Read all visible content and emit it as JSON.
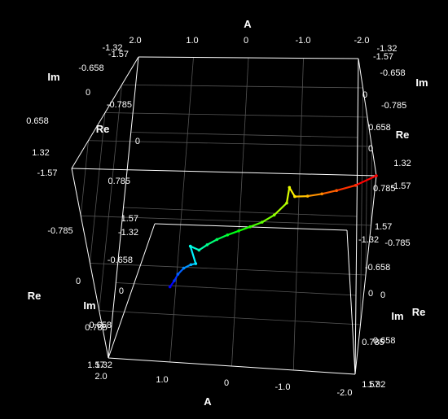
{
  "chart_data": {
    "type": "line",
    "projection": "3d",
    "axes": {
      "A": {
        "label": "A",
        "ticks": [
          "2.0",
          "1.0",
          "0",
          "-1.0",
          "-2.0"
        ],
        "range": [
          2.0,
          -2.0
        ]
      },
      "Re": {
        "label": "Re",
        "ticks": [
          "-1.57",
          "-0.785",
          "0",
          "0.785",
          "1.57"
        ],
        "range": [
          -1.57,
          1.57
        ]
      },
      "Im": {
        "label": "Im",
        "ticks": [
          "-1.32",
          "-0.658",
          "0",
          "0.658",
          "1.32"
        ],
        "range": [
          -1.32,
          1.32
        ]
      }
    },
    "grid": true,
    "colormap": [
      "#0000ff",
      "#00ffff",
      "#00ff00",
      "#ffff00",
      "#ff0000"
    ],
    "series": [
      {
        "color_by": "parameter",
        "points": [
          {
            "A": 1.72,
            "Re": 1.57,
            "Im": 0.0
          },
          {
            "A": 1.55,
            "Re": 1.4,
            "Im": 0.0
          },
          {
            "A": 1.4,
            "Re": 1.22,
            "Im": 0.0
          },
          {
            "A": 1.22,
            "Re": 1.05,
            "Im": 0.0
          },
          {
            "A": 1.05,
            "Re": 0.95,
            "Im": 0.0
          },
          {
            "A": 0.95,
            "Re": 0.92,
            "Im": 0.0
          },
          {
            "A": 0.9,
            "Re": 0.45,
            "Im": 0.0
          },
          {
            "A": 0.78,
            "Re": 0.55,
            "Im": 0.0
          },
          {
            "A": 0.6,
            "Re": 0.4,
            "Im": 0.0
          },
          {
            "A": 0.4,
            "Re": 0.25,
            "Im": 0.0
          },
          {
            "A": 0.2,
            "Re": 0.12,
            "Im": 0.0
          },
          {
            "A": 0.0,
            "Re": 0.0,
            "Im": 0.0
          },
          {
            "A": -0.2,
            "Re": -0.12,
            "Im": 0.0
          },
          {
            "A": -0.4,
            "Re": -0.25,
            "Im": 0.0
          },
          {
            "A": -0.6,
            "Re": -0.45,
            "Im": 0.0
          },
          {
            "A": -0.8,
            "Re": -0.78,
            "Im": 0.0
          },
          {
            "A": -0.85,
            "Re": -1.2,
            "Im": 0.0
          },
          {
            "A": -0.92,
            "Re": -0.96,
            "Im": 0.0
          },
          {
            "A": -1.1,
            "Re": -0.98,
            "Im": 0.0
          },
          {
            "A": -1.3,
            "Re": -1.05,
            "Im": 0.0
          },
          {
            "A": -1.5,
            "Re": -1.15,
            "Im": 0.0
          },
          {
            "A": -1.75,
            "Re": -1.3,
            "Im": 0.0
          },
          {
            "A": -2.0,
            "Re": -1.57,
            "Im": 0.0
          }
        ]
      }
    ]
  }
}
